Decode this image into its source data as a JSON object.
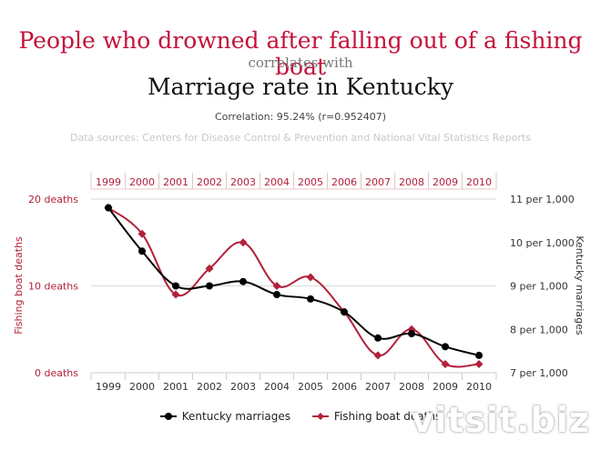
{
  "header": {
    "title": "People who drowned after falling out of a fishing boat",
    "connector": "correlates with",
    "subtitle": "Marriage rate in Kentucky",
    "correlation": "Correlation: 95.24% (r=0.952407)",
    "sources": "Data sources: Centers for Disease Control & Prevention and National Vital Statistics Reports"
  },
  "colors": {
    "fishing": "#b2203a",
    "marriages": "#000000",
    "title": "#c4123b",
    "grid": "#d9d9d9"
  },
  "chart_data": {
    "type": "line",
    "x": [
      "1999",
      "2000",
      "2001",
      "2002",
      "2003",
      "2004",
      "2005",
      "2006",
      "2007",
      "2008",
      "2009",
      "2010"
    ],
    "series": [
      {
        "name": "Kentucky marriages",
        "axis": "right",
        "values": [
          10.8,
          9.8,
          9.0,
          9.0,
          9.1,
          8.8,
          8.7,
          8.4,
          7.8,
          7.9,
          7.6,
          7.4
        ]
      },
      {
        "name": "Fishing boat deaths",
        "axis": "left",
        "values": [
          19,
          16,
          9,
          12,
          15,
          10,
          11,
          7,
          2,
          5,
          1,
          1
        ]
      }
    ],
    "left_axis": {
      "label": "Fishing boat deaths",
      "ticks": [
        "20 deaths",
        "10 deaths",
        "0 deaths"
      ],
      "range": [
        0,
        20
      ]
    },
    "right_axis": {
      "label": "Kentucky marriages",
      "ticks": [
        "11 per 1,000",
        "10 per 1,000",
        "9 per 1,000",
        "8 per 1,000",
        "7 per 1,000"
      ],
      "range": [
        7,
        11
      ]
    },
    "grid": true,
    "legend_position": "bottom-center"
  },
  "watermark": "vitsit.biz"
}
